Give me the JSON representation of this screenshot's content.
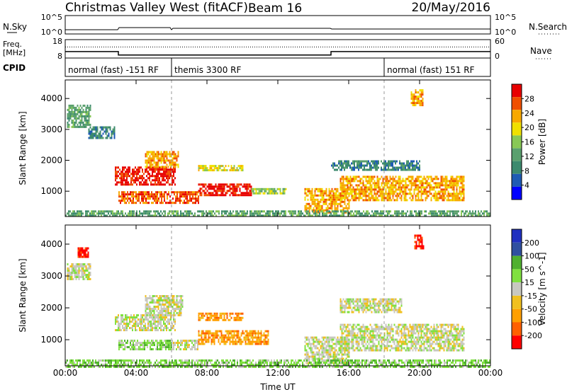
{
  "header": {
    "station": "Christmas Valley West (fitACF)",
    "beam": "Beam 16",
    "date": "20/May/2016"
  },
  "strips": {
    "nsky_label": "N.Sky",
    "nsky_ticks": [
      "10^5",
      "10^0"
    ],
    "nsearch_label": "N.Search",
    "nsearch_ticks": [
      "10^5",
      "10^0"
    ],
    "freq_label": "Freq.",
    "freq_unit": "[MHz]",
    "freq_ticks": [
      "18",
      "8"
    ],
    "nave_label": "Nave",
    "nave_ticks": [
      "60",
      "0"
    ],
    "cpid_label": "CPID",
    "cpid_segments": [
      {
        "label": "normal (fast) -151 RF",
        "start_hr": 0,
        "end_hr": 6
      },
      {
        "label": "themis 3300 RF",
        "start_hr": 6,
        "end_hr": 18
      },
      {
        "label": "normal (fast) 151 RF",
        "start_hr": 18,
        "end_hr": 24
      }
    ],
    "freq_series": {
      "x_hr": [
        0,
        3,
        3,
        15,
        15,
        24
      ],
      "mhz": [
        11.5,
        11.5,
        9.6,
        9.6,
        11.5,
        11.5
      ]
    },
    "nave_series": {
      "x_hr": [
        0,
        24
      ],
      "value": [
        36,
        36
      ]
    }
  },
  "colors": {
    "power": [
      "#0000ff",
      "#1f5bb4",
      "#3c8a6e",
      "#5aa06e",
      "#88c855",
      "#f0e000",
      "#f8a800",
      "#f05000",
      "#e80000"
    ],
    "velocity": [
      "#ff0000",
      "#ff6000",
      "#ff9f00",
      "#f0c020",
      "#c8c8c0",
      "#80e040",
      "#50b030",
      "#3050a0",
      "#2030c0"
    ],
    "background": "#ffffff"
  },
  "chart_data": [
    {
      "type": "heatmap",
      "title": "Power",
      "ylabel": "Slant Range [km]",
      "xlabel": "Time UT",
      "x_ticks": [
        "00:00",
        "04:00",
        "08:00",
        "12:00",
        "16:00",
        "20:00",
        "00:00"
      ],
      "x_range_hr": [
        0,
        24
      ],
      "y_ticks": [
        1000,
        2000,
        3000,
        4000
      ],
      "y_range_km": [
        180,
        4600
      ],
      "colorbar_label": "Power [dB]",
      "colorbar_ticks": [
        4,
        8,
        12,
        16,
        20,
        24,
        28
      ],
      "colorbar_range": [
        0,
        32
      ],
      "dashed_markers_hr": [
        6,
        18
      ],
      "regions": [
        {
          "t0": 0.1,
          "t1": 1.4,
          "r0": 3100,
          "r1": 3800,
          "level": 3
        },
        {
          "t0": 1.3,
          "t1": 2.8,
          "r0": 2700,
          "r1": 3100,
          "level": 2
        },
        {
          "t0": 2.8,
          "t1": 6.2,
          "r0": 1200,
          "r1": 1800,
          "level": 8
        },
        {
          "t0": 4.5,
          "t1": 6.4,
          "r0": 1800,
          "r1": 2300,
          "level": 6
        },
        {
          "t0": 3.0,
          "t1": 7.5,
          "r0": 600,
          "r1": 1000,
          "level": 7
        },
        {
          "t0": 7.5,
          "t1": 10.5,
          "r0": 850,
          "r1": 1250,
          "level": 8
        },
        {
          "t0": 7.5,
          "t1": 10.0,
          "r0": 1650,
          "r1": 1850,
          "level": 5
        },
        {
          "t0": 10.5,
          "t1": 12.5,
          "r0": 900,
          "r1": 1100,
          "level": 4
        },
        {
          "t0": 13.5,
          "t1": 16.0,
          "r0": 300,
          "r1": 1100,
          "level": 6
        },
        {
          "t0": 15.5,
          "t1": 22.5,
          "r0": 700,
          "r1": 1500,
          "level": 6
        },
        {
          "t0": 15.0,
          "t1": 20.0,
          "r0": 1700,
          "r1": 2000,
          "level": 2
        },
        {
          "t0": 19.5,
          "t1": 20.2,
          "r0": 3800,
          "r1": 4300,
          "level": 6
        },
        {
          "t0": 0.0,
          "t1": 24.0,
          "r0": 180,
          "r1": 380,
          "level": 3
        }
      ]
    },
    {
      "type": "heatmap",
      "title": "Velocity",
      "ylabel": "Slant Range [km]",
      "xlabel": "Time UT",
      "x_ticks": [
        "00:00",
        "04:00",
        "08:00",
        "12:00",
        "16:00",
        "20:00",
        "00:00"
      ],
      "x_range_hr": [
        0,
        24
      ],
      "y_ticks": [
        1000,
        2000,
        3000,
        4000
      ],
      "y_range_km": [
        180,
        4600
      ],
      "colorbar_label": "Velocity [m s^-1]",
      "colorbar_ticks": [
        200,
        100,
        50,
        15,
        -15,
        -50,
        -100,
        -200
      ],
      "colorbar_range": [
        -250,
        250
      ],
      "dashed_markers_hr": [
        6,
        18
      ],
      "regions": [
        {
          "t0": 0.1,
          "t1": 1.4,
          "r0": 2900,
          "r1": 3400,
          "level": 4
        },
        {
          "t0": 0.7,
          "t1": 1.3,
          "r0": 3600,
          "r1": 3900,
          "level": 0
        },
        {
          "t0": 2.8,
          "t1": 6.2,
          "r0": 1300,
          "r1": 1800,
          "level": 4
        },
        {
          "t0": 4.5,
          "t1": 6.6,
          "r0": 1800,
          "r1": 2400,
          "level": 4
        },
        {
          "t0": 3.0,
          "t1": 6.0,
          "r0": 700,
          "r1": 1000,
          "level": 5
        },
        {
          "t0": 6.0,
          "t1": 7.5,
          "r0": 700,
          "r1": 1000,
          "level": 4
        },
        {
          "t0": 7.5,
          "t1": 11.5,
          "r0": 850,
          "r1": 1300,
          "level": 2
        },
        {
          "t0": 7.5,
          "t1": 10.0,
          "r0": 1650,
          "r1": 1850,
          "level": 2
        },
        {
          "t0": 13.5,
          "t1": 16.0,
          "r0": 300,
          "r1": 1100,
          "level": 4
        },
        {
          "t0": 15.5,
          "t1": 22.5,
          "r0": 700,
          "r1": 1500,
          "level": 4
        },
        {
          "t0": 15.5,
          "t1": 19.0,
          "r0": 1900,
          "r1": 2300,
          "level": 4
        },
        {
          "t0": 19.7,
          "t1": 20.2,
          "r0": 3900,
          "r1": 4300,
          "level": 0
        },
        {
          "t0": 0.0,
          "t1": 24.0,
          "r0": 180,
          "r1": 380,
          "level": 5
        }
      ]
    }
  ]
}
